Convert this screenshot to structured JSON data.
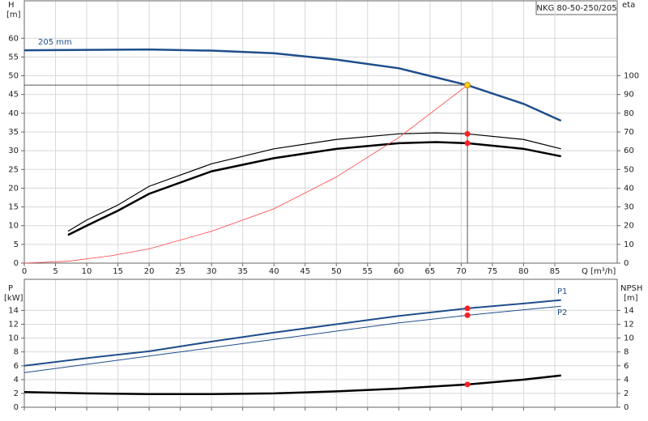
{
  "chart_data": [
    {
      "type": "line",
      "title": "NKG 80-50-250/205",
      "y_label": "H",
      "y_unit": "[m]",
      "y2_label": "eta",
      "x_label": "Q [m³/h]",
      "xlim": [
        0,
        95
      ],
      "xticks": [
        0,
        5,
        10,
        15,
        20,
        25,
        30,
        35,
        40,
        45,
        50,
        55,
        60,
        65,
        70,
        75,
        80,
        85
      ],
      "ylim": [
        0,
        70
      ],
      "yticks": [
        0,
        5,
        10,
        15,
        20,
        25,
        30,
        35,
        40,
        45,
        50,
        55,
        60
      ],
      "y2lim": [
        0,
        140
      ],
      "y2ticks": [
        0,
        10,
        20,
        30,
        40,
        50,
        60,
        70,
        80,
        90,
        100
      ],
      "grid": true,
      "operating_point": [
        71,
        47.5
      ],
      "marker_x": 71,
      "series": [
        {
          "name": "205 mm",
          "color": "#1f4e8c",
          "line_width": 2.5,
          "marker_color": "#ffd21f",
          "x": [
            0,
            10,
            20,
            30,
            40,
            50,
            60,
            71,
            80,
            86
          ],
          "values": [
            56.8,
            56.9,
            57.0,
            56.7,
            56.0,
            54.3,
            52.0,
            47.5,
            42.5,
            38.0
          ]
        },
        {
          "color": "#000000",
          "line_width": 1.2,
          "axis": "y2",
          "marker_color": "#ff2020",
          "x": [
            7,
            10,
            15,
            20,
            30,
            40,
            50,
            60,
            66,
            71,
            80,
            86
          ],
          "values": [
            17,
            23,
            31,
            41,
            53,
            61,
            66,
            69,
            69.5,
            69,
            66,
            61
          ]
        },
        {
          "color": "#000000",
          "line_width": 2.5,
          "axis": "y2",
          "marker_color": "#ff2020",
          "x": [
            7,
            10,
            15,
            20,
            30,
            40,
            50,
            60,
            66,
            71,
            80,
            86
          ],
          "values": [
            15,
            20,
            28,
            37,
            49,
            56,
            61,
            64,
            64.6,
            64,
            61,
            57
          ]
        },
        {
          "color": "#ff4040",
          "line_width": 0.8,
          "x": [
            0,
            7,
            14,
            20,
            30,
            40,
            50,
            60,
            71
          ],
          "values": [
            0,
            0.5,
            2,
            3.8,
            8.5,
            14.5,
            23,
            33.5,
            47.5
          ]
        }
      ]
    },
    {
      "type": "line",
      "y_label": "P",
      "y_unit": "[kW]",
      "y2_label": "NPSH",
      "y2_unit": "[m]",
      "xlim": [
        0,
        95
      ],
      "xticks": [
        0,
        5,
        10,
        15,
        20,
        25,
        30,
        35,
        40,
        45,
        50,
        55,
        60,
        65,
        70,
        75,
        80,
        85
      ],
      "ylim": [
        0,
        18.5
      ],
      "yticks": [
        0,
        2,
        4,
        6,
        8,
        10,
        12,
        14
      ],
      "y2lim": [
        0,
        18.5
      ],
      "y2ticks": [
        0,
        2,
        4,
        6,
        8,
        10,
        12,
        14
      ],
      "grid": true,
      "marker_x": 71,
      "series": [
        {
          "name": "P1",
          "color": "#1f4e8c",
          "line_width": 2,
          "marker_color": "#ff2020",
          "x": [
            0,
            10,
            20,
            30,
            40,
            50,
            60,
            71,
            80,
            86
          ],
          "values": [
            6,
            7.1,
            8.1,
            9.5,
            10.8,
            12.0,
            13.2,
            14.3,
            15.0,
            15.5
          ]
        },
        {
          "name": "P2",
          "color": "#1f4e8c",
          "line_width": 1,
          "marker_color": "#ff2020",
          "x": [
            0,
            10,
            20,
            30,
            40,
            50,
            60,
            71,
            80,
            86
          ],
          "values": [
            5,
            6.2,
            7.4,
            8.6,
            9.8,
            11.0,
            12.2,
            13.3,
            14.1,
            14.6
          ]
        },
        {
          "color": "#000000",
          "line_width": 2.5,
          "axis": "y2",
          "marker_color": "#ff2020",
          "x": [
            0,
            10,
            20,
            30,
            40,
            50,
            60,
            71,
            80,
            86
          ],
          "values": [
            2.2,
            2.0,
            1.9,
            1.9,
            2.0,
            2.3,
            2.7,
            3.3,
            4.0,
            4.6
          ]
        }
      ]
    }
  ]
}
